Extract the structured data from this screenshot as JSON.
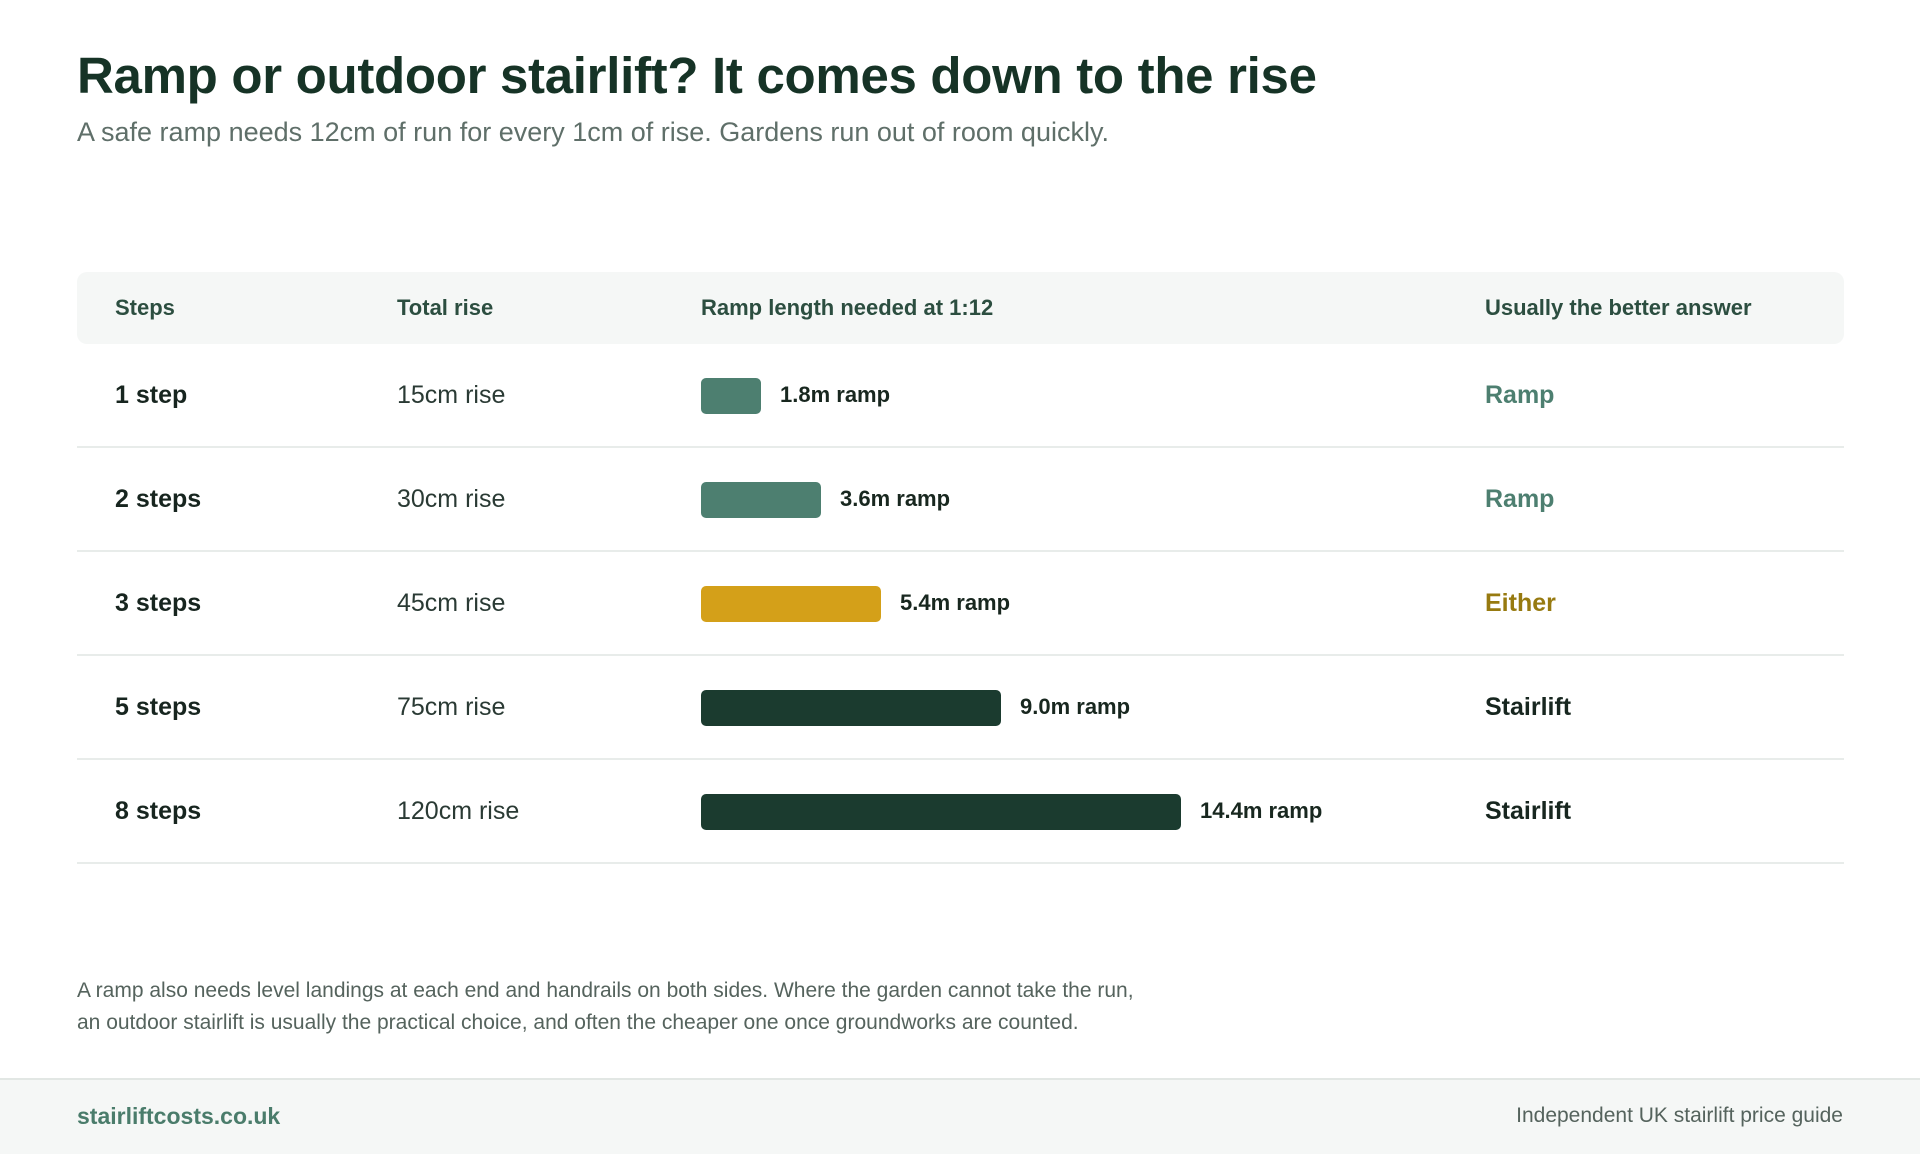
{
  "header": {
    "title": "Ramp or outdoor stairlift? It comes down to the rise",
    "subtitle": "A safe ramp needs 12cm of run for every 1cm of rise. Gardens run out of room quickly."
  },
  "table": {
    "columns": [
      "Steps",
      "Total rise",
      "Ramp length needed at 1:12",
      "Usually the better answer"
    ]
  },
  "chart_data": {
    "type": "bar",
    "orientation": "horizontal",
    "unit": "m",
    "categories": [
      "1 step",
      "2 steps",
      "3 steps",
      "5 steps",
      "8 steps"
    ],
    "rise_labels": [
      "15cm rise",
      "30cm rise",
      "45cm rise",
      "75cm rise",
      "120cm rise"
    ],
    "values": [
      1.8,
      3.6,
      5.4,
      9.0,
      14.4
    ],
    "value_labels": [
      "1.8m ramp",
      "3.6m ramp",
      "5.4m ramp",
      "9.0m ramp",
      "14.4m ramp"
    ],
    "answers": [
      "Ramp",
      "Ramp",
      "Either",
      "Stairlift",
      "Stairlift"
    ],
    "colors": [
      "#4d7f70",
      "#4d7f70",
      "#d4a019",
      "#1b3b2f",
      "#1b3b2f"
    ],
    "answer_colors": [
      "#4d7f70",
      "#4d7f70",
      "#977a10",
      "#17261f",
      "#17261f"
    ],
    "xlim": [
      0,
      14.4
    ]
  },
  "note": {
    "line1": "A ramp also needs level landings at each end and handrails on both sides. Where the garden cannot take the run,",
    "line2": "an outdoor stairlift is usually the practical choice, and often the cheaper one once groundworks are counted."
  },
  "footer": {
    "brand": "stairliftcosts.co.uk",
    "tagline": "Independent UK stairlift price guide"
  }
}
